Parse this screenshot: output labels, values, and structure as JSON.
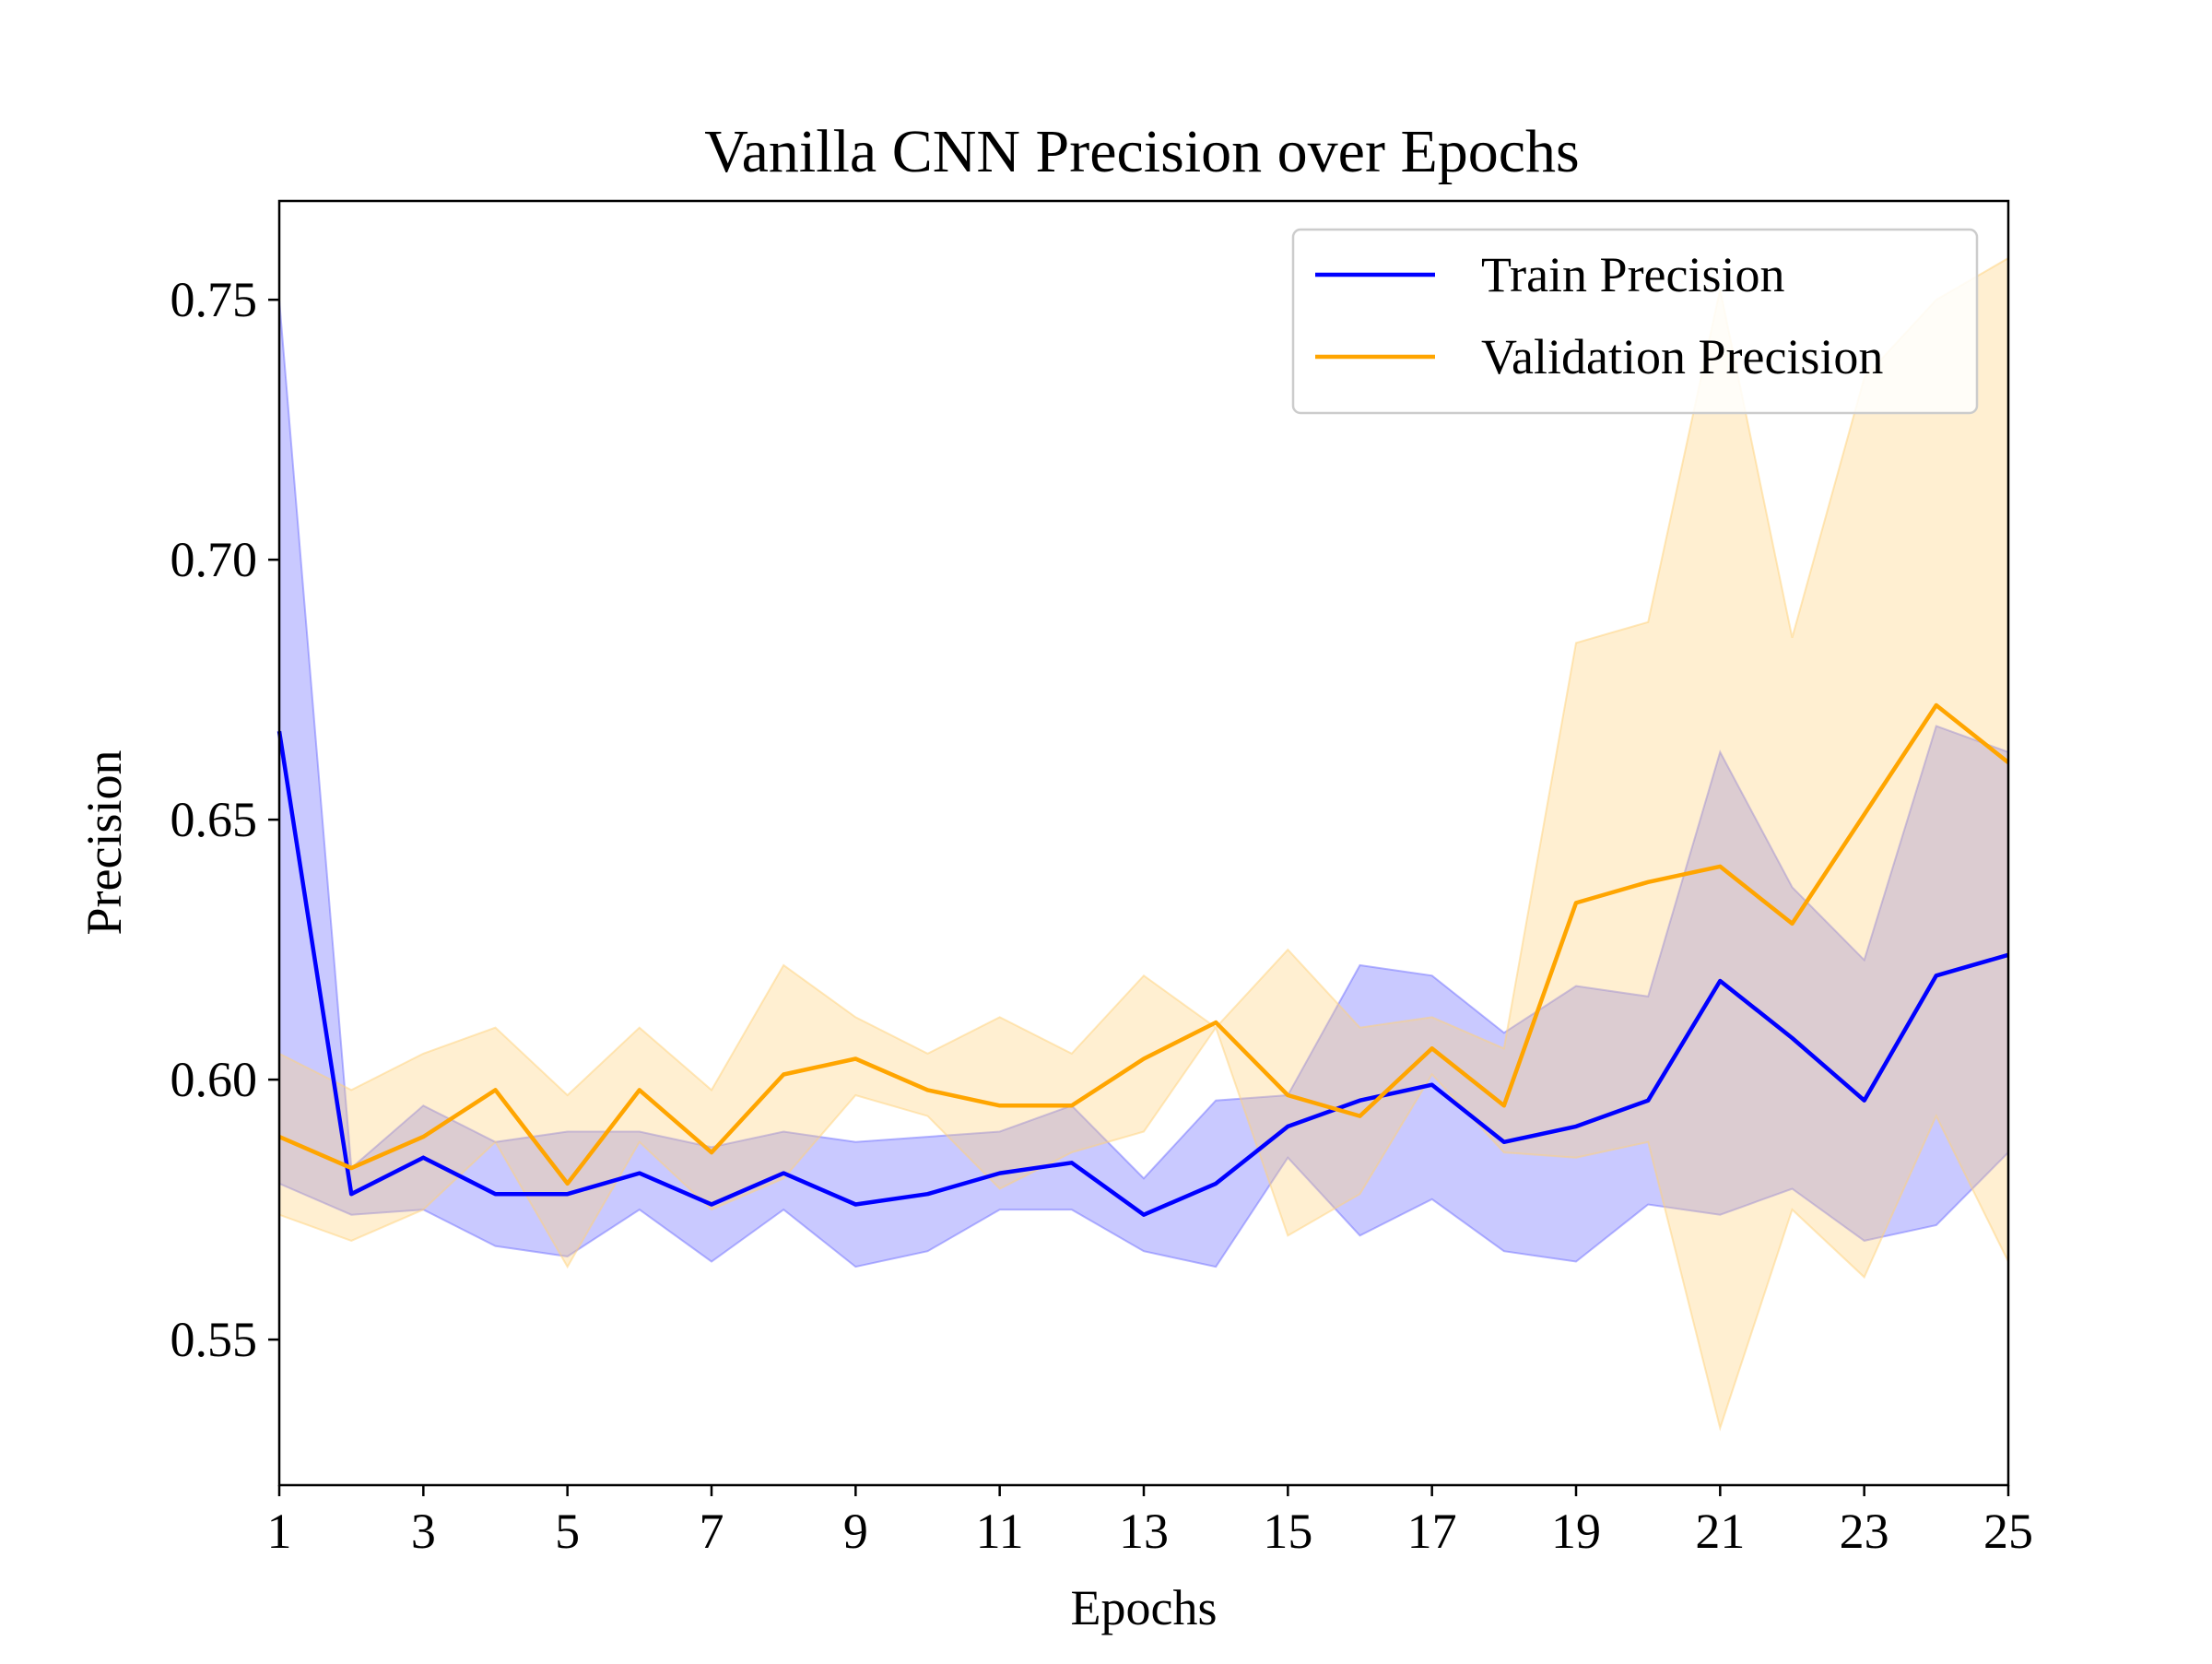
{
  "chart_data": {
    "type": "line",
    "title": "Vanilla CNN Precision over Epochs",
    "xlabel": "Epochs",
    "ylabel": "Precision",
    "xlim": [
      1,
      25
    ],
    "ylim": [
      0.522,
      0.769
    ],
    "xticks": [
      1,
      3,
      5,
      7,
      9,
      11,
      13,
      15,
      17,
      19,
      21,
      23,
      25
    ],
    "yticks": [
      0.55,
      0.6,
      0.65,
      0.7,
      0.75
    ],
    "grid": false,
    "legend_position": "top-right",
    "x": [
      1,
      2,
      3,
      4,
      5,
      6,
      7,
      8,
      9,
      10,
      11,
      12,
      13,
      14,
      15,
      16,
      17,
      18,
      19,
      20,
      21,
      22,
      23,
      24,
      25
    ],
    "series": [
      {
        "name": "Train Precision",
        "color": "#0000ff",
        "band_color": "#7070ff",
        "values": [
          0.667,
          0.578,
          0.585,
          0.578,
          0.578,
          0.582,
          0.576,
          0.582,
          0.576,
          0.578,
          0.582,
          0.584,
          0.574,
          0.58,
          0.591,
          0.596,
          0.599,
          0.588,
          0.591,
          0.596,
          0.619,
          0.608,
          0.596,
          0.62,
          0.624
        ],
        "upper": [
          0.75,
          0.583,
          0.595,
          0.588,
          0.59,
          0.59,
          0.587,
          0.59,
          0.588,
          0.589,
          0.59,
          0.595,
          0.581,
          0.596,
          0.597,
          0.622,
          0.62,
          0.609,
          0.618,
          0.616,
          0.663,
          0.637,
          0.623,
          0.668,
          0.663
        ],
        "lower": [
          0.58,
          0.574,
          0.575,
          0.568,
          0.566,
          0.575,
          0.565,
          0.575,
          0.564,
          0.567,
          0.575,
          0.575,
          0.567,
          0.564,
          0.585,
          0.57,
          0.577,
          0.567,
          0.565,
          0.576,
          0.574,
          0.579,
          0.569,
          0.572,
          0.586
        ]
      },
      {
        "name": "Validation Precision",
        "color": "#ffa500",
        "band_color": "#ffd27a",
        "values": [
          0.589,
          0.583,
          0.589,
          0.598,
          0.58,
          0.598,
          0.586,
          0.601,
          0.604,
          0.598,
          0.595,
          0.595,
          0.604,
          0.611,
          0.597,
          0.593,
          0.606,
          0.595,
          0.634,
          0.638,
          0.641,
          0.63,
          0.651,
          0.672,
          0.661
        ],
        "upper": [
          0.605,
          0.598,
          0.605,
          0.61,
          0.597,
          0.61,
          0.598,
          0.622,
          0.612,
          0.605,
          0.612,
          0.605,
          0.62,
          0.61,
          0.625,
          0.61,
          0.612,
          0.606,
          0.684,
          0.688,
          0.752,
          0.685,
          0.735,
          0.75,
          0.758
        ],
        "lower": [
          0.574,
          0.569,
          0.575,
          0.588,
          0.564,
          0.588,
          0.575,
          0.581,
          0.597,
          0.593,
          0.579,
          0.586,
          0.59,
          0.61,
          0.57,
          0.578,
          0.601,
          0.586,
          0.585,
          0.588,
          0.533,
          0.575,
          0.562,
          0.593,
          0.565
        ]
      }
    ]
  }
}
